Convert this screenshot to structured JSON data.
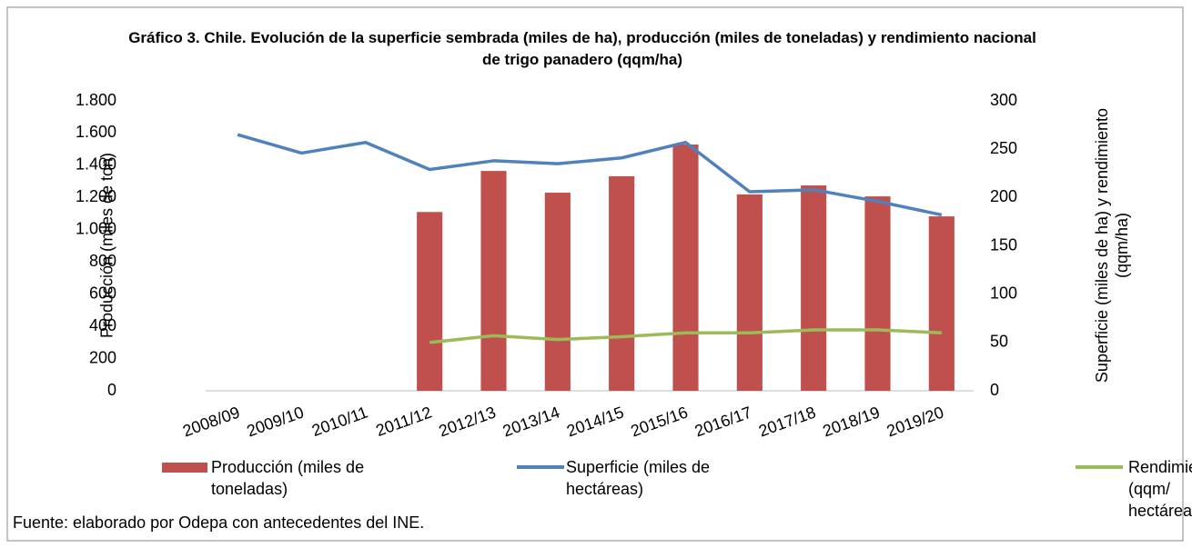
{
  "chart_data": {
    "type": "bar_line",
    "title": "Gráfico 3. Chile. Evolución de la superficie sembrada (miles de ha), producción (miles de toneladas) y rendimiento nacional de trigo panadero (qqm/ha)",
    "ylabel": "Producción (miles de ton)",
    "y2label": "Superficie (miles de ha) y rendimiento (qqm/ha)",
    "source": "Fuente: elaborado por Odepa con antecedentes del INE.",
    "categories": [
      "2008/09",
      "2009/10",
      "2010/11",
      "2011/12",
      "2012/13",
      "2013/14",
      "2014/15",
      "2015/16",
      "2016/17",
      "2017/18",
      "2018/19",
      "2019/20"
    ],
    "series": [
      {
        "name": "Producción (miles de toneladas)",
        "type": "bar",
        "color": "#c0504d",
        "axis": "y",
        "values": [
          null,
          null,
          null,
          1110,
          1365,
          1230,
          1332,
          1529,
          1219,
          1275,
          1207,
          1083
        ]
      },
      {
        "name": "Superficie (miles de hectáreas)",
        "type": "line",
        "color": "#4f81bd",
        "axis": "y2",
        "values": [
          265,
          246,
          257,
          229,
          238,
          235,
          241,
          257,
          206,
          208,
          196,
          182
        ]
      },
      {
        "name": "Rendimiento (qqm/ hectárea)",
        "type": "line",
        "color": "#9bbb59",
        "axis": "y2",
        "values": [
          null,
          null,
          null,
          50,
          57,
          53,
          56,
          60,
          60,
          63,
          63,
          60
        ]
      }
    ],
    "ylim": [
      0,
      1800
    ],
    "yticks": [
      0,
      200,
      400,
      600,
      800,
      {
        "value": 1000,
        "label": "1.000"
      },
      {
        "value": 1200,
        "label": "1.200"
      },
      {
        "value": 1400,
        "label": "1.400"
      },
      {
        "value": 1600,
        "label": "1.600"
      },
      {
        "value": 1800,
        "label": "1.800"
      }
    ],
    "y2lim": [
      0,
      300
    ],
    "y2ticks": [
      0,
      50,
      100,
      150,
      200,
      250,
      300
    ],
    "grid": false,
    "legend": "bottom"
  }
}
